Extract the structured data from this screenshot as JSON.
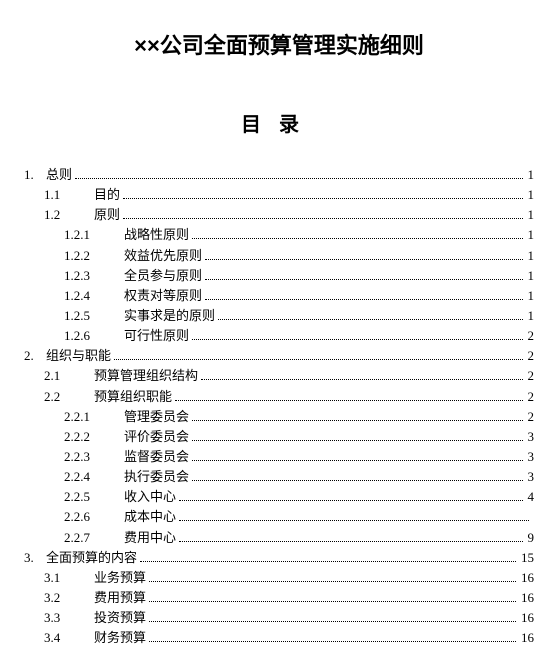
{
  "title": "××公司全面预算管理实施细则",
  "toc_header": "目录",
  "entries": [
    {
      "level": 1,
      "num": "1.",
      "text": "总则",
      "page": "1"
    },
    {
      "level": 2,
      "num": "1.1",
      "text": "目的",
      "page": "1"
    },
    {
      "level": 2,
      "num": "1.2",
      "text": "原则",
      "page": "1"
    },
    {
      "level": 3,
      "num": "1.2.1",
      "text": "战略性原则",
      "page": "1"
    },
    {
      "level": 3,
      "num": "1.2.2",
      "text": "效益优先原则",
      "page": "1"
    },
    {
      "level": 3,
      "num": "1.2.3",
      "text": "全员参与原则",
      "page": "1"
    },
    {
      "level": 3,
      "num": "1.2.4",
      "text": "权责对等原则",
      "page": "1"
    },
    {
      "level": 3,
      "num": "1.2.5",
      "text": "实事求是的原则",
      "page": "1"
    },
    {
      "level": 3,
      "num": "1.2.6",
      "text": "可行性原则",
      "page": "2"
    },
    {
      "level": 1,
      "num": "2.",
      "text": "组织与职能",
      "page": "2"
    },
    {
      "level": 2,
      "num": "2.1",
      "text": "预算管理组织结构",
      "page": "2"
    },
    {
      "level": 2,
      "num": "2.2",
      "text": "预算组织职能",
      "page": "2"
    },
    {
      "level": 3,
      "num": "2.2.1",
      "text": "管理委员会",
      "page": "2"
    },
    {
      "level": 3,
      "num": "2.2.2",
      "text": "评价委员会",
      "page": "3"
    },
    {
      "level": 3,
      "num": "2.2.3",
      "text": "监督委员会",
      "page": "3"
    },
    {
      "level": 3,
      "num": "2.2.4",
      "text": "执行委员会",
      "page": "3"
    },
    {
      "level": 3,
      "num": "2.2.5",
      "text": "收入中心",
      "page": "4"
    },
    {
      "level": 3,
      "num": "2.2.6",
      "text": "成本中心",
      "page": ""
    },
    {
      "level": 3,
      "num": "2.2.7",
      "text": "费用中心",
      "page": "9"
    },
    {
      "level": 1,
      "num": "3.",
      "text": "全面预算的内容",
      "page": "15"
    },
    {
      "level": 2,
      "num": "3.1",
      "text": "业务预算",
      "page": "16"
    },
    {
      "level": 2,
      "num": "3.2",
      "text": "费用预算",
      "page": "16"
    },
    {
      "level": 2,
      "num": "3.3",
      "text": "投资预算",
      "page": "16"
    },
    {
      "level": 2,
      "num": "3.4",
      "text": "财务预算",
      "page": "16"
    }
  ]
}
